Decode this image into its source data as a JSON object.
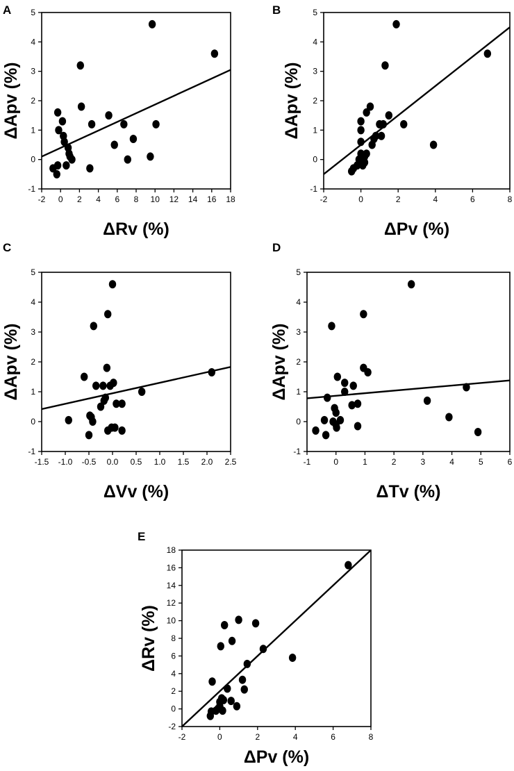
{
  "chart_data": [
    {
      "panel": "A",
      "type": "scatter",
      "xlabel": "ΔRv (%)",
      "ylabel": "ΔApv (%)",
      "xlim": [
        -2,
        18
      ],
      "ylim": [
        -1,
        5
      ],
      "xticks": [
        "-2",
        "0",
        "2",
        "4",
        "6",
        "8",
        "10",
        "12",
        "14",
        "16",
        "18"
      ],
      "yticks": [
        "-1",
        "0",
        "1",
        "2",
        "3",
        "4",
        "5"
      ],
      "points": [
        [
          -0.8,
          -0.3
        ],
        [
          -0.4,
          -0.5
        ],
        [
          -0.3,
          -0.2
        ],
        [
          -0.3,
          1.6
        ],
        [
          -0.2,
          1.0
        ],
        [
          0.2,
          1.3
        ],
        [
          0.3,
          0.8
        ],
        [
          0.4,
          0.6
        ],
        [
          0.6,
          -0.2
        ],
        [
          0.8,
          0.4
        ],
        [
          0.9,
          0.2
        ],
        [
          1.0,
          0.1
        ],
        [
          1.2,
          0.0
        ],
        [
          2.1,
          3.2
        ],
        [
          2.2,
          1.8
        ],
        [
          3.1,
          -0.3
        ],
        [
          3.3,
          1.2
        ],
        [
          5.1,
          1.5
        ],
        [
          5.7,
          0.5
        ],
        [
          6.7,
          1.2
        ],
        [
          7.1,
          0.0
        ],
        [
          7.7,
          0.7
        ],
        [
          9.5,
          0.1
        ],
        [
          9.7,
          4.6
        ],
        [
          10.1,
          1.2
        ],
        [
          16.3,
          3.6
        ]
      ],
      "fit_line": {
        "x": [
          -2,
          18
        ],
        "y": [
          0.1,
          3.05
        ]
      }
    },
    {
      "panel": "B",
      "type": "scatter",
      "xlabel": "ΔPv (%)",
      "ylabel": "ΔApv (%)",
      "xlim": [
        -2,
        8
      ],
      "ylim": [
        -1,
        5
      ],
      "xticks": [
        "-2",
        "0",
        "2",
        "4",
        "6",
        "8"
      ],
      "yticks": [
        "-1",
        "0",
        "1",
        "2",
        "3",
        "4",
        "5"
      ],
      "points": [
        [
          -0.5,
          -0.4
        ],
        [
          -0.4,
          -0.3
        ],
        [
          -0.2,
          -0.2
        ],
        [
          -0.1,
          0.0
        ],
        [
          0.0,
          0.6
        ],
        [
          0.0,
          1.0
        ],
        [
          0.0,
          1.3
        ],
        [
          0.0,
          0.2
        ],
        [
          0.1,
          -0.2
        ],
        [
          0.2,
          0.1
        ],
        [
          0.2,
          -0.1
        ],
        [
          0.3,
          0.2
        ],
        [
          0.3,
          1.6
        ],
        [
          0.5,
          1.8
        ],
        [
          0.6,
          0.5
        ],
        [
          0.7,
          0.7
        ],
        [
          0.8,
          0.8
        ],
        [
          1.0,
          1.2
        ],
        [
          1.1,
          0.8
        ],
        [
          1.2,
          1.2
        ],
        [
          1.3,
          3.2
        ],
        [
          1.5,
          1.5
        ],
        [
          1.9,
          4.6
        ],
        [
          2.3,
          1.2
        ],
        [
          3.9,
          0.5
        ],
        [
          6.8,
          3.6
        ]
      ],
      "fit_line": {
        "x": [
          -2,
          8
        ],
        "y": [
          -0.5,
          4.5
        ]
      }
    },
    {
      "panel": "C",
      "type": "scatter",
      "xlabel": "ΔVv (%)",
      "ylabel": "ΔApv (%)",
      "xlim": [
        -1.5,
        2.5
      ],
      "ylim": [
        -1,
        5
      ],
      "xticks": [
        "-1.5",
        "-1.0",
        "-0.5",
        "0.0",
        "0.5",
        "1.0",
        "1.5",
        "2.0",
        "2.5"
      ],
      "yticks": [
        "-1",
        "0",
        "1",
        "2",
        "3",
        "4",
        "5"
      ],
      "points": [
        [
          -0.93,
          0.05
        ],
        [
          -0.6,
          1.5
        ],
        [
          -0.5,
          -0.45
        ],
        [
          -0.48,
          0.2
        ],
        [
          -0.45,
          0.15
        ],
        [
          -0.42,
          0.0
        ],
        [
          -0.4,
          3.2
        ],
        [
          -0.35,
          1.2
        ],
        [
          -0.25,
          0.5
        ],
        [
          -0.2,
          1.2
        ],
        [
          -0.18,
          0.7
        ],
        [
          -0.15,
          0.8
        ],
        [
          -0.12,
          1.8
        ],
        [
          -0.1,
          3.6
        ],
        [
          -0.1,
          -0.3
        ],
        [
          -0.05,
          1.2
        ],
        [
          -0.02,
          -0.2
        ],
        [
          0.0,
          4.6
        ],
        [
          0.02,
          1.3
        ],
        [
          0.05,
          -0.2
        ],
        [
          0.08,
          0.6
        ],
        [
          0.2,
          0.6
        ],
        [
          0.2,
          -0.3
        ],
        [
          0.62,
          1.0
        ],
        [
          2.1,
          1.65
        ]
      ],
      "fit_line": {
        "x": [
          -1.5,
          2.5
        ],
        "y": [
          0.42,
          1.83
        ]
      }
    },
    {
      "panel": "D",
      "type": "scatter",
      "xlabel": "ΔTv (%)",
      "ylabel": "ΔApv (%)",
      "xlim": [
        -1,
        6
      ],
      "ylim": [
        -1,
        5
      ],
      "xticks": [
        "-1",
        "0",
        "1",
        "2",
        "3",
        "4",
        "5",
        "6"
      ],
      "yticks": [
        "-1",
        "0",
        "1",
        "2",
        "3",
        "4",
        "5"
      ],
      "points": [
        [
          -0.7,
          -0.3
        ],
        [
          -0.4,
          0.05
        ],
        [
          -0.35,
          -0.45
        ],
        [
          -0.3,
          0.8
        ],
        [
          -0.15,
          3.2
        ],
        [
          -0.1,
          0.0
        ],
        [
          -0.05,
          0.45
        ],
        [
          0.0,
          0.3
        ],
        [
          0.0,
          -0.1
        ],
        [
          0.02,
          -0.2
        ],
        [
          0.05,
          1.5
        ],
        [
          0.15,
          0.05
        ],
        [
          0.3,
          1.3
        ],
        [
          0.3,
          1.0
        ],
        [
          0.55,
          0.55
        ],
        [
          0.6,
          1.2
        ],
        [
          0.75,
          0.6
        ],
        [
          0.75,
          -0.15
        ],
        [
          0.95,
          3.6
        ],
        [
          0.95,
          1.8
        ],
        [
          1.1,
          1.65
        ],
        [
          2.6,
          4.6
        ],
        [
          3.15,
          0.7
        ],
        [
          3.9,
          0.15
        ],
        [
          4.5,
          1.15
        ],
        [
          4.9,
          -0.35
        ]
      ],
      "fit_line": {
        "x": [
          -1,
          6
        ],
        "y": [
          0.78,
          1.38
        ]
      }
    },
    {
      "panel": "E",
      "type": "scatter",
      "xlabel": "ΔPv (%)",
      "ylabel": "ΔRv (%)",
      "xlim": [
        -2,
        8
      ],
      "ylim": [
        -2,
        18
      ],
      "xticks": [
        "-2",
        "0",
        "2",
        "4",
        "6",
        "8"
      ],
      "yticks": [
        "-2",
        "0",
        "2",
        "4",
        "6",
        "8",
        "10",
        "12",
        "14",
        "16",
        "18"
      ],
      "points": [
        [
          -0.5,
          -0.8
        ],
        [
          -0.45,
          -0.3
        ],
        [
          -0.4,
          3.1
        ],
        [
          -0.2,
          -0.2
        ],
        [
          -0.1,
          0.0
        ],
        [
          0.0,
          0.3
        ],
        [
          0.0,
          0.8
        ],
        [
          0.05,
          7.1
        ],
        [
          0.1,
          1.2
        ],
        [
          0.15,
          -0.2
        ],
        [
          0.2,
          1.0
        ],
        [
          0.25,
          9.5
        ],
        [
          0.4,
          2.3
        ],
        [
          0.6,
          0.9
        ],
        [
          0.65,
          7.7
        ],
        [
          0.9,
          0.3
        ],
        [
          1.0,
          10.1
        ],
        [
          1.2,
          3.3
        ],
        [
          1.3,
          2.2
        ],
        [
          1.45,
          5.1
        ],
        [
          1.9,
          9.7
        ],
        [
          2.3,
          6.8
        ],
        [
          3.85,
          5.8
        ],
        [
          6.8,
          16.3
        ]
      ],
      "fit_line": {
        "x": [
          -2,
          8
        ],
        "y": [
          -2,
          18
        ]
      }
    }
  ],
  "panel_labels": [
    "A",
    "B",
    "C",
    "D",
    "E"
  ]
}
